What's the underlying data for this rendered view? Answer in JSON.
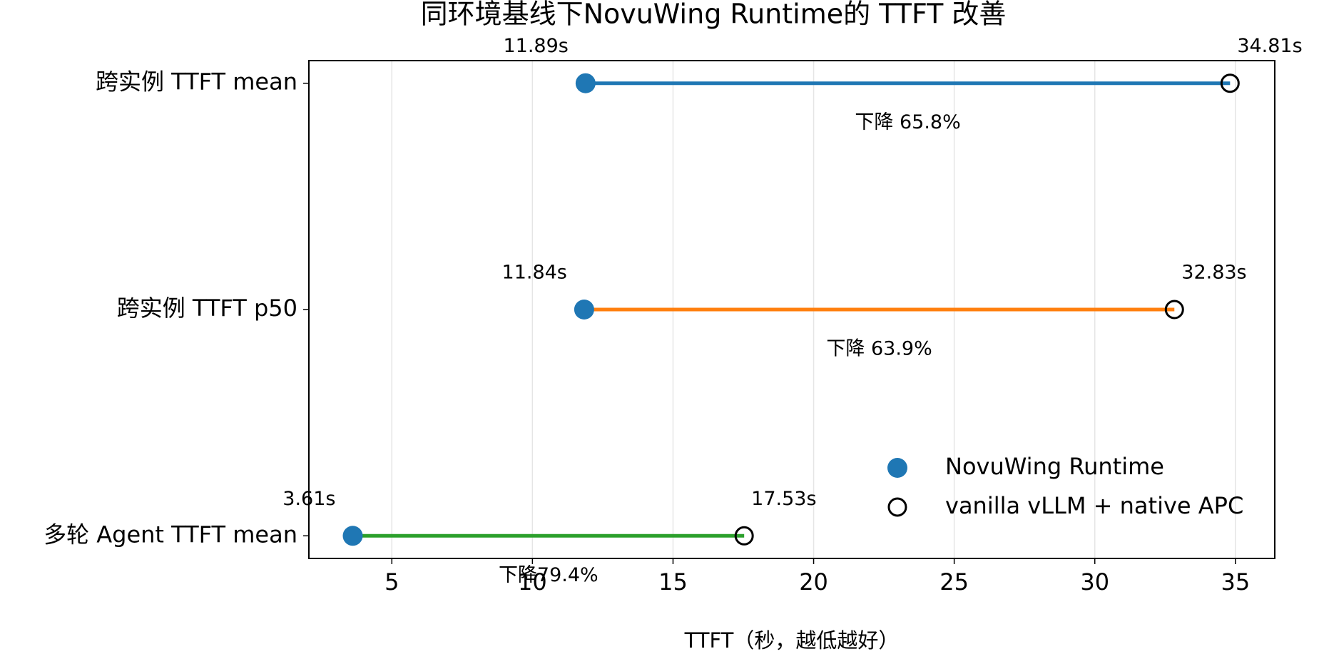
{
  "chart_data": {
    "type": "dumbbell",
    "title": "同环境基线下NovuWing Runtime的 TTFT 改善",
    "x_label": "TTFT（秒，越低越好）",
    "categories": [
      "跨实例 TTFT mean",
      "跨实例 TTFT p50",
      "多轮 Agent TTFT mean"
    ],
    "line_colors": [
      "#1f77b4",
      "#ff7f0e",
      "#2ca02c"
    ],
    "series": [
      {
        "name": "NovuWing Runtime",
        "color": "#1f77b4",
        "marker": "filled",
        "values": [
          11.89,
          11.84,
          3.61
        ],
        "value_labels": [
          "11.89s",
          "11.84s",
          "3.61s"
        ]
      },
      {
        "name": "vanilla vLLM + native APC",
        "color": "#000000",
        "marker": "hollow",
        "values": [
          34.81,
          32.83,
          17.53
        ],
        "value_labels": [
          "34.81s",
          "32.83s",
          "17.53s"
        ]
      }
    ],
    "annotations": [
      "下降 65.8%",
      "下降 63.9%",
      "下降79.4%"
    ],
    "xlim": [
      2.05,
      36.4
    ],
    "xticks": [
      5,
      10,
      15,
      20,
      25,
      30,
      35
    ],
    "grid": true,
    "legend": "lower right"
  }
}
